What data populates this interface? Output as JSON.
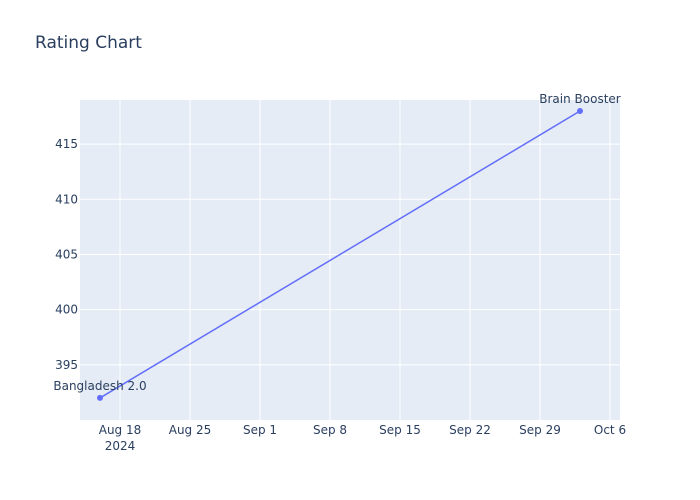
{
  "chart_data": {
    "type": "line",
    "title": "Rating Chart",
    "xlabel": "",
    "ylabel": "",
    "x": [
      "2024-08-16",
      "2024-10-03"
    ],
    "series": [
      {
        "values": [
          392,
          418
        ],
        "point_labels": [
          "Bangladesh 2.0",
          "Brain Booster"
        ],
        "color": "#636efa"
      }
    ],
    "xlim": [
      "2024-08-14",
      "2024-10-07"
    ],
    "ylim": [
      390,
      419
    ],
    "x_ticks": [
      {
        "date": "2024-08-18",
        "label": "Aug 18",
        "sublabel": "2024"
      },
      {
        "date": "2024-08-25",
        "label": "Aug 25"
      },
      {
        "date": "2024-09-01",
        "label": "Sep 1"
      },
      {
        "date": "2024-09-08",
        "label": "Sep 8"
      },
      {
        "date": "2024-09-15",
        "label": "Sep 15"
      },
      {
        "date": "2024-09-22",
        "label": "Sep 22"
      },
      {
        "date": "2024-09-29",
        "label": "Sep 29"
      },
      {
        "date": "2024-10-06",
        "label": "Oct 6"
      }
    ],
    "y_ticks": [
      395,
      400,
      405,
      410,
      415
    ],
    "grid": true,
    "plot_bgcolor": "#e5ecf6"
  }
}
